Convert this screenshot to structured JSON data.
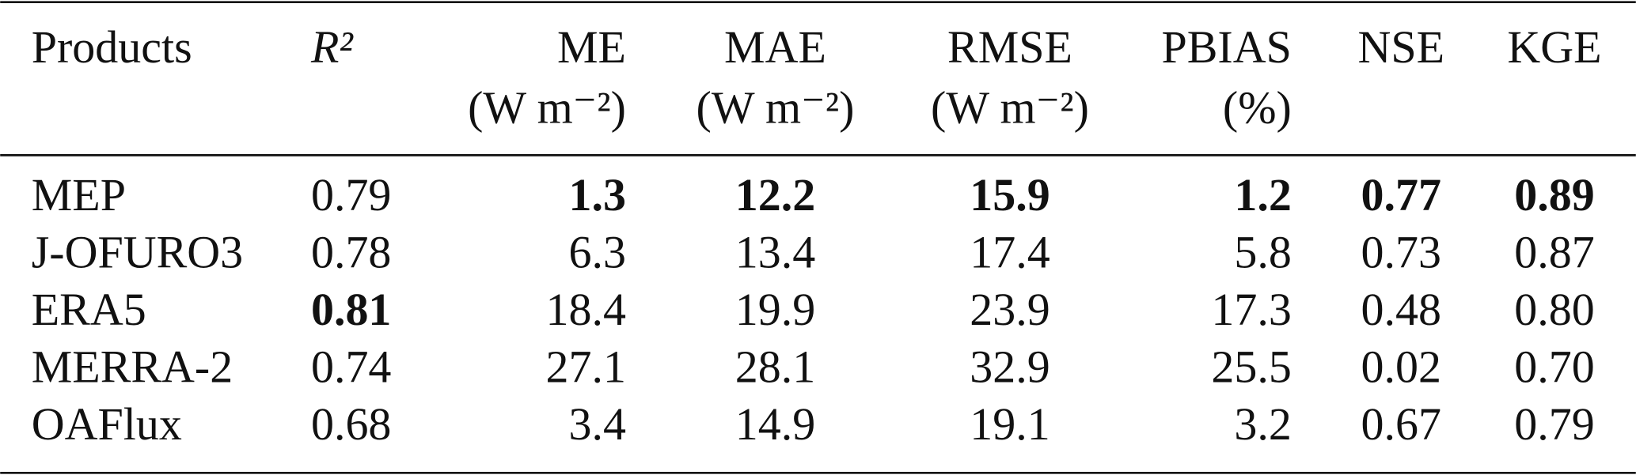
{
  "table": {
    "header": [
      {
        "label": "Products"
      },
      {
        "label": "R²"
      },
      {
        "label": "ME",
        "unit": "(W m⁻²)"
      },
      {
        "label": "MAE",
        "unit": "(W m⁻²)"
      },
      {
        "label": "RMSE",
        "unit": "(W m⁻²)"
      },
      {
        "label": "PBIAS",
        "unit": "(%)"
      },
      {
        "label": "NSE"
      },
      {
        "label": "KGE"
      }
    ],
    "rows": [
      [
        {
          "text": "MEP"
        },
        {
          "text": "0.79"
        },
        {
          "text": "1.3",
          "bold": true
        },
        {
          "text": "12.2",
          "bold": true
        },
        {
          "text": "15.9",
          "bold": true
        },
        {
          "text": "1.2",
          "bold": true
        },
        {
          "text": "0.77",
          "bold": true
        },
        {
          "text": "0.89",
          "bold": true
        }
      ],
      [
        {
          "text": "J-OFURO3"
        },
        {
          "text": "0.78"
        },
        {
          "text": "6.3"
        },
        {
          "text": "13.4"
        },
        {
          "text": "17.4"
        },
        {
          "text": "5.8"
        },
        {
          "text": "0.73"
        },
        {
          "text": "0.87"
        }
      ],
      [
        {
          "text": "ERA5"
        },
        {
          "text": "0.81",
          "bold": true
        },
        {
          "text": "18.4"
        },
        {
          "text": "19.9"
        },
        {
          "text": "23.9"
        },
        {
          "text": "17.3"
        },
        {
          "text": "0.48"
        },
        {
          "text": "0.80"
        }
      ],
      [
        {
          "text": "MERRA-2"
        },
        {
          "text": "0.74"
        },
        {
          "text": "27.1"
        },
        {
          "text": "28.1"
        },
        {
          "text": "32.9"
        },
        {
          "text": "25.5"
        },
        {
          "text": "0.02"
        },
        {
          "text": "0.70"
        }
      ],
      [
        {
          "text": "OAFlux"
        },
        {
          "text": "0.68"
        },
        {
          "text": "3.4"
        },
        {
          "text": "14.9"
        },
        {
          "text": "19.1"
        },
        {
          "text": "3.2"
        },
        {
          "text": "0.67"
        },
        {
          "text": "0.79"
        }
      ]
    ]
  }
}
